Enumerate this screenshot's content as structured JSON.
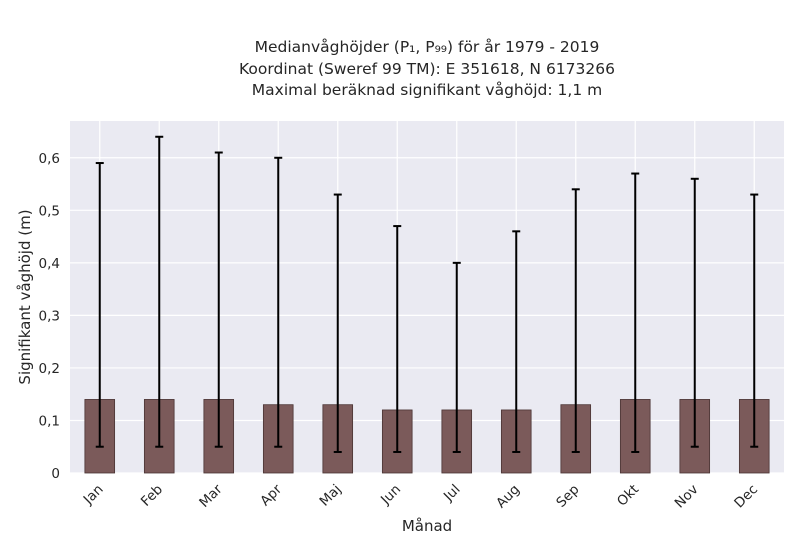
{
  "chart_data": {
    "type": "bar",
    "title": [
      "Medianvåghöjder (P₁, P₉₉) för år 1979 - 2019",
      "Koordinat (Sweref 99 TM): E 351618, N 6173266",
      "Maximal beräknad signifikant våghöjd: 1,1 m"
    ],
    "xlabel": "Månad",
    "ylabel": "Signifikant våghöjd (m)",
    "categories": [
      "Jan",
      "Feb",
      "Mar",
      "Apr",
      "Maj",
      "Jun",
      "Jul",
      "Aug",
      "Sep",
      "Okt",
      "Nov",
      "Dec"
    ],
    "series": [
      {
        "values": [
          0.14,
          0.14,
          0.14,
          0.13,
          0.13,
          0.12,
          0.12,
          0.12,
          0.13,
          0.14,
          0.14,
          0.14
        ],
        "error_low": [
          0.05,
          0.05,
          0.05,
          0.05,
          0.04,
          0.04,
          0.04,
          0.04,
          0.04,
          0.04,
          0.05,
          0.05
        ],
        "error_high": [
          0.59,
          0.64,
          0.61,
          0.6,
          0.53,
          0.47,
          0.4,
          0.46,
          0.54,
          0.57,
          0.56,
          0.53
        ]
      }
    ],
    "yticks": [
      0,
      0.1,
      0.2,
      0.3,
      0.4,
      0.5,
      0.6
    ],
    "ytick_labels": [
      "0",
      "0,1",
      "0,2",
      "0,3",
      "0,4",
      "0,5",
      "0,6"
    ],
    "ylim": [
      0,
      0.67
    ],
    "grid": true,
    "colors": {
      "bar": "#7b5a5a",
      "bar_edge": "#4a3434",
      "error_bar": "#000000",
      "plot_background": "#eaeaf2",
      "grid": "#ffffff"
    }
  }
}
